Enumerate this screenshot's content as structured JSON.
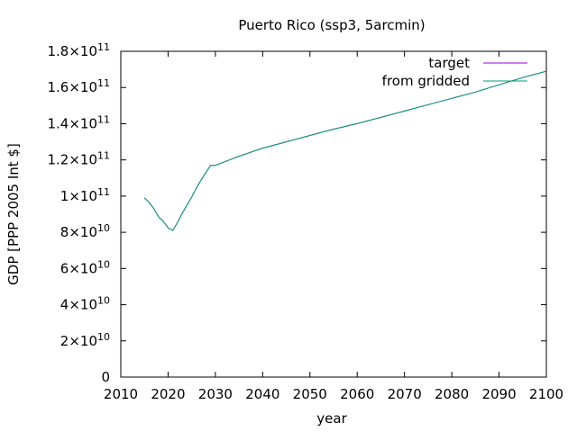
{
  "chart_data": {
    "type": "line",
    "title": "Puerto Rico (ssp3, 5arcmin)",
    "xlabel": "year",
    "ylabel": "GDP [PPP 2005 Int $]",
    "xlim": [
      2010,
      2100
    ],
    "ylim": [
      0,
      180000000000
    ],
    "xticks": [
      2010,
      2020,
      2030,
      2040,
      2050,
      2060,
      2070,
      2080,
      2090,
      2100
    ],
    "yticks": [
      {
        "value": 0,
        "mantissa": "0",
        "exp": ""
      },
      {
        "value": 20000000000,
        "mantissa": "2×10",
        "exp": "10"
      },
      {
        "value": 40000000000,
        "mantissa": "4×10",
        "exp": "10"
      },
      {
        "value": 60000000000,
        "mantissa": "6×10",
        "exp": "10"
      },
      {
        "value": 80000000000,
        "mantissa": "8×10",
        "exp": "10"
      },
      {
        "value": 100000000000,
        "mantissa": "1×10",
        "exp": "11"
      },
      {
        "value": 120000000000,
        "mantissa": "1.2×10",
        "exp": "11"
      },
      {
        "value": 140000000000,
        "mantissa": "1.4×10",
        "exp": "11"
      },
      {
        "value": 160000000000,
        "mantissa": "1.6×10",
        "exp": "11"
      },
      {
        "value": 180000000000,
        "mantissa": "1.8×10",
        "exp": "11"
      }
    ],
    "grid": false,
    "legend_position": "top-right",
    "series": [
      {
        "name": "target",
        "color": "#9400d3",
        "x": [
          2015,
          2016,
          2017,
          2018,
          2019,
          2020,
          2021,
          2022,
          2023,
          2024,
          2025,
          2026,
          2027,
          2028,
          2029,
          2030,
          2035,
          2040,
          2045,
          2050,
          2055,
          2060,
          2065,
          2070,
          2075,
          2080,
          2085,
          2090,
          2095,
          2100
        ],
        "y": [
          99000000000,
          96500000000,
          93000000000,
          88500000000,
          86000000000,
          82500000000,
          81000000000,
          85500000000,
          90500000000,
          95000000000,
          99500000000,
          104500000000,
          109000000000,
          113000000000,
          117000000000,
          117000000000,
          122000000000,
          126500000000,
          130000000000,
          133500000000,
          137000000000,
          140000000000,
          143500000000,
          147000000000,
          150500000000,
          154000000000,
          157500000000,
          161500000000,
          165500000000,
          169000000000
        ]
      },
      {
        "name": "from gridded",
        "color": "#009e73",
        "x": [
          2015,
          2016,
          2017,
          2018,
          2019,
          2020,
          2021,
          2022,
          2023,
          2024,
          2025,
          2026,
          2027,
          2028,
          2029,
          2030,
          2035,
          2040,
          2045,
          2050,
          2055,
          2060,
          2065,
          2070,
          2075,
          2080,
          2085,
          2090,
          2095,
          2100
        ],
        "y": [
          99000000000,
          96500000000,
          93000000000,
          88500000000,
          86000000000,
          82500000000,
          81000000000,
          85500000000,
          90500000000,
          95000000000,
          99500000000,
          104500000000,
          109000000000,
          113000000000,
          117000000000,
          117000000000,
          122000000000,
          126500000000,
          130000000000,
          133500000000,
          137000000000,
          140000000000,
          143500000000,
          147000000000,
          150500000000,
          154000000000,
          157500000000,
          161500000000,
          165500000000,
          169000000000
        ]
      }
    ]
  }
}
